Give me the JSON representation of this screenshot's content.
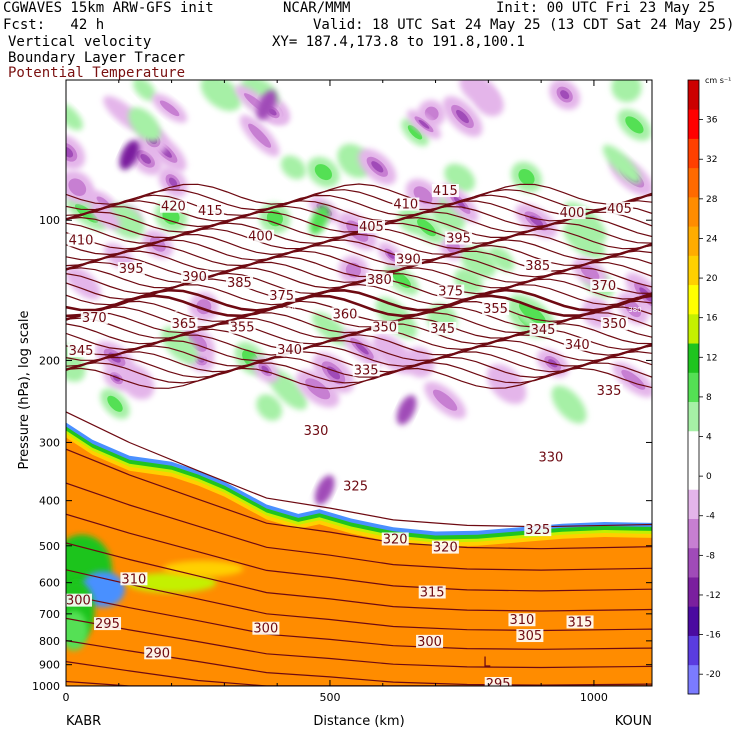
{
  "header": {
    "line1_left": "CGWAVES 15km ARW-GFS init",
    "line1_mid": "NCAR/MMM",
    "line1_right": "Init: 00 UTC Fri 23 May 25",
    "fcst": "Fcst:   42 h",
    "valid": "Valid: 18 UTC Sat 24 May 25 (13 CDT Sat 24 May 25)",
    "field1": "Vertical velocity",
    "xy": "XY= 187.4,173.8 to 191.8,100.1",
    "field2": "Boundary Layer Tracer",
    "field3": "Potential Temperature"
  },
  "colors": {
    "theta_contour": "#6e0a12",
    "header_red": "#7a1010"
  },
  "chart_data": {
    "type": "heatmap",
    "xlabel": "Distance (km)",
    "ylabel": "Pressure (hPa), log scale",
    "x_ticks": [
      "0",
      "500",
      "1000"
    ],
    "x_end_labels": {
      "left": "KABR",
      "right": "KOUN"
    },
    "xlim": [
      0,
      1110
    ],
    "y_ticks": [
      "100",
      "200",
      "300",
      "400",
      "500",
      "600",
      "700",
      "800",
      "900",
      "1000"
    ],
    "ylim_hpa": [
      1000,
      50
    ],
    "y_scale": "log",
    "colorbar": {
      "unit": "cm s⁻¹",
      "ticks": [
        "36",
        "32",
        "28",
        "24",
        "20",
        "16",
        "12",
        "8",
        "4",
        "0",
        "-4",
        "-8",
        "-12",
        "-16",
        "-20"
      ],
      "range": [
        -22,
        40
      ],
      "colors": [
        "#7b7bff",
        "#5a3ce0",
        "#4a0aa0",
        "#7a1f9e",
        "#a04bb8",
        "#c77fd2",
        "#e4b5ea",
        "#ffffff",
        "#ffffff",
        "#a6f0a6",
        "#54e054",
        "#1fc41f",
        "#c4f000",
        "#ffff00",
        "#ffd000",
        "#ffac00",
        "#ff8c00",
        "#ff6a00",
        "#ff4000",
        "#ff0000",
        "#cc0000"
      ]
    },
    "theta_labels": [
      {
        "v": "420",
        "x": 180,
        "p": 94
      },
      {
        "v": "415",
        "x": 250,
        "p": 96
      },
      {
        "v": "415",
        "x": 695,
        "p": 87
      },
      {
        "v": "410",
        "x": 5,
        "p": 111
      },
      {
        "v": "410",
        "x": 620,
        "p": 93
      },
      {
        "v": "405",
        "x": 555,
        "p": 104
      },
      {
        "v": "405",
        "x": 1025,
        "p": 95
      },
      {
        "v": "400",
        "x": 345,
        "p": 109
      },
      {
        "v": "400",
        "x": 935,
        "p": 97
      },
      {
        "v": "395",
        "x": 100,
        "p": 128
      },
      {
        "v": "395",
        "x": 720,
        "p": 110
      },
      {
        "v": "390",
        "x": 220,
        "p": 133
      },
      {
        "v": "390",
        "x": 625,
        "p": 122
      },
      {
        "v": "385",
        "x": 305,
        "p": 137
      },
      {
        "v": "385",
        "x": 870,
        "p": 126
      },
      {
        "v": "380",
        "x": 570,
        "p": 135
      },
      {
        "v": "375",
        "x": 385,
        "p": 146
      },
      {
        "v": "375",
        "x": 705,
        "p": 143
      },
      {
        "v": "370",
        "x": 30,
        "p": 163
      },
      {
        "v": "370",
        "x": 995,
        "p": 139
      },
      {
        "v": "365",
        "x": 200,
        "p": 168
      },
      {
        "v": "360",
        "x": 505,
        "p": 160
      },
      {
        "v": "355",
        "x": 310,
        "p": 171
      },
      {
        "v": "355",
        "x": 790,
        "p": 156
      },
      {
        "v": "350",
        "x": 580,
        "p": 171
      },
      {
        "v": "350",
        "x": 1015,
        "p": 168
      },
      {
        "v": "345",
        "x": 5,
        "p": 192
      },
      {
        "v": "345",
        "x": 690,
        "p": 172
      },
      {
        "v": "345",
        "x": 880,
        "p": 173
      },
      {
        "v": "340",
        "x": 400,
        "p": 191
      },
      {
        "v": "340",
        "x": 945,
        "p": 186
      },
      {
        "v": "335",
        "x": 545,
        "p": 211
      },
      {
        "v": "335",
        "x": 1005,
        "p": 234
      },
      {
        "v": "330",
        "x": 450,
        "p": 285
      },
      {
        "v": "330",
        "x": 895,
        "p": 325
      },
      {
        "v": "325",
        "x": 525,
        "p": 375
      },
      {
        "v": "325",
        "x": 870,
        "p": 465
      },
      {
        "v": "320",
        "x": 600,
        "p": 487
      },
      {
        "v": "320",
        "x": 695,
        "p": 507
      },
      {
        "v": "315",
        "x": 670,
        "p": 633
      },
      {
        "v": "315",
        "x": 950,
        "p": 734
      },
      {
        "v": "310",
        "x": 105,
        "p": 593
      },
      {
        "v": "310",
        "x": 840,
        "p": 726
      },
      {
        "v": "305",
        "x": 855,
        "p": 785
      },
      {
        "v": "300",
        "x": 0,
        "p": 659
      },
      {
        "v": "300",
        "x": 355,
        "p": 757
      },
      {
        "v": "300",
        "x": 665,
        "p": 808
      },
      {
        "v": "295",
        "x": 55,
        "p": 740
      },
      {
        "v": "295",
        "x": 795,
        "p": 995
      },
      {
        "v": "290",
        "x": 150,
        "p": 855
      }
    ],
    "small_labels": [
      {
        "v": "380",
        "x": 205,
        "p": 155
      },
      {
        "v": "380",
        "x": 410,
        "p": 155
      },
      {
        "v": "380",
        "x": 1065,
        "p": 155
      }
    ],
    "annotations": [
      {
        "v": "L",
        "x": 790,
        "p": 890
      }
    ]
  }
}
